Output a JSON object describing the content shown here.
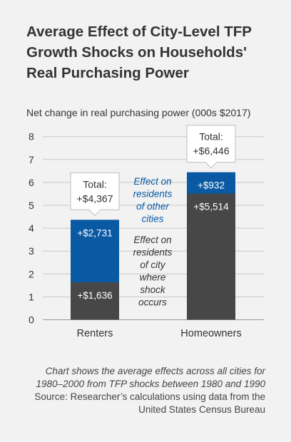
{
  "chart_data": {
    "type": "bar",
    "stacked": true,
    "title": "Average Effect of City-Level TFP Growth Shocks on Households' Real Purchasing Power",
    "ylabel": "Net change in real purchasing power (000s $2017)",
    "categories": [
      "Renters",
      "Homeowners"
    ],
    "ylim": [
      0,
      8
    ],
    "yticks": [
      0,
      1,
      2,
      3,
      4,
      5,
      6,
      7,
      8
    ],
    "grid": true,
    "series": [
      {
        "name": "Effect on residents of city where shock occurs",
        "values": [
          1.636,
          5.514
        ],
        "labels": [
          "+$1,636",
          "+$5,514"
        ],
        "color": "#474747"
      },
      {
        "name": "Effect on residents of other cities",
        "values": [
          2.731,
          0.932
        ],
        "labels": [
          "+$2,731",
          "+$932"
        ],
        "color": "#0a5aa3"
      }
    ],
    "totals": {
      "label": "Total:",
      "values": [
        4.367,
        6.446
      ],
      "labels": [
        "+$4,367",
        "+$6,446"
      ]
    }
  },
  "legend_lines": {
    "other": [
      "Effect on",
      "residents",
      "of other",
      "cities"
    ],
    "own": [
      "Effect on",
      "residents",
      "of city",
      "where",
      "shock",
      "occurs"
    ]
  },
  "notes": {
    "note": "Chart shows the average effects across all cities for 1980–2000 from TFP shocks between 1980 and 1990",
    "source": "Source: Researcher’s calculations using data from the United States Census Bureau"
  },
  "colors": {
    "background": "#f2f2f2",
    "own_city": "#474747",
    "other_cities": "#0a5aa3",
    "other_label": "#0a5aa3",
    "text": "#333333"
  }
}
